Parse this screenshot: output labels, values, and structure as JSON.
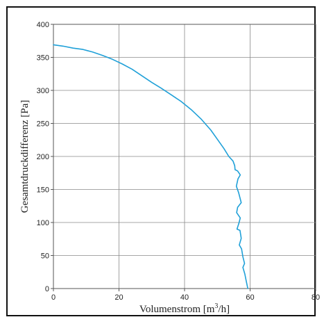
{
  "chart_data": {
    "type": "line",
    "title": "",
    "xlabel": "Volumenstrom [m³/h]",
    "xlabel_parts": {
      "main": "Volumenstrom [m",
      "sup": "3",
      "tail": "/h]"
    },
    "ylabel": "Gesamtdruckdifferenz [Pa]",
    "xlim": [
      0,
      80
    ],
    "ylim": [
      0,
      400
    ],
    "xticks": [
      "0",
      "20",
      "40",
      "60",
      "80"
    ],
    "yticks": [
      "0",
      "50",
      "100",
      "150",
      "200",
      "250",
      "300",
      "350",
      "400"
    ],
    "grid": true,
    "line_color": "#1fa0d8",
    "series": [
      {
        "x": [
          0,
          3,
          6,
          9,
          12,
          15,
          18,
          21,
          24,
          27,
          30,
          33,
          36,
          39,
          42,
          45,
          48,
          50,
          52,
          53.5,
          54.8,
          55.3,
          55.4,
          56.2,
          57.0,
          56.3,
          55.8,
          56.5,
          57.3,
          56.2,
          55.9,
          57.0,
          56.6,
          56.0,
          56.9,
          57.3,
          56.7,
          57.4,
          57.8,
          58.3,
          57.8,
          58.4,
          58.7,
          59.0,
          59.3
        ],
        "y": [
          369,
          367,
          364,
          362,
          358,
          353,
          347,
          340,
          332,
          322,
          312,
          303,
          293,
          283,
          271,
          257,
          240,
          226,
          212,
          200,
          193,
          186,
          180,
          178,
          172,
          166,
          155,
          145,
          130,
          123,
          115,
          107,
          99,
          90,
          88,
          76,
          66,
          60,
          48,
          38,
          32,
          22,
          14,
          7,
          0
        ]
      }
    ]
  }
}
